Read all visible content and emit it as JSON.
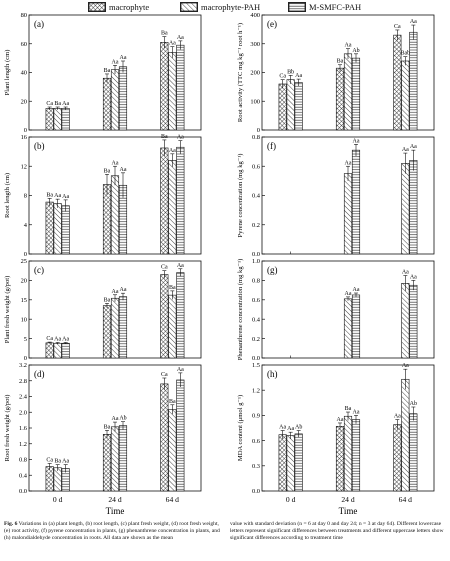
{
  "legend": [
    {
      "label": "macrophyte",
      "pattern": "pat-cross"
    },
    {
      "label": "macrophyte-PAH",
      "pattern": "pat-diag"
    },
    {
      "label": "M-SMFC-PAH",
      "pattern": "pat-hline"
    }
  ],
  "xlabel": "Time",
  "caption": {
    "left_prefix": "Fig. 6",
    "left": " Variations in (a) plant length, (b) root length, (c) plant fresh weight, (d) root fresh weight, (e) root activity, (f) pyrene concentration in plants, (g) phenanthrene concentration in plants, and (h) malondialdehyde concentration in roots. All data are shown as the mean",
    "right": "value with standard deviation (n = 6 at day 0 and day 24; n = 3 at day 64). Different lowercase letters represent significant differences between treatments and different uppercase letters show significant differences according to treatment time"
  },
  "chart_data": [
    {
      "panel": "(a)",
      "type": "bar",
      "ylabel": "Plant length (cm)",
      "ylim": [
        0,
        80
      ],
      "yticks": [
        "0",
        "20",
        "40",
        "60",
        "80"
      ],
      "categories": [
        "0 d",
        "24 d",
        "64 d"
      ],
      "series": [
        {
          "name": "macrophyte",
          "values": [
            15,
            36,
            61
          ],
          "err": [
            1,
            3,
            4
          ]
        },
        {
          "name": "macrophyte-PAH",
          "values": [
            15,
            42,
            54
          ],
          "err": [
            1,
            3,
            4
          ]
        },
        {
          "name": "M-SMFC-PAH",
          "values": [
            15,
            44,
            59
          ],
          "err": [
            1,
            4,
            3
          ]
        }
      ],
      "labels": [
        [
          "Ca",
          "Ba",
          "Aa"
        ],
        [
          "Ba",
          "Aa",
          "Aa"
        ],
        [
          "Ba",
          "Aa",
          "Aa"
        ]
      ]
    },
    {
      "panel": "(b)",
      "type": "bar",
      "ylabel": "Root length (cm)",
      "ylim": [
        0,
        16
      ],
      "yticks": [
        "0",
        "4",
        "8",
        "12",
        "16"
      ],
      "categories": [
        "0 d",
        "24 d",
        "64 d"
      ],
      "series": [
        {
          "name": "macrophyte",
          "values": [
            7.1,
            9.5,
            14.5
          ],
          "err": [
            0.5,
            1.4,
            1.1
          ]
        },
        {
          "name": "macrophyte-PAH",
          "values": [
            6.9,
            10.7,
            12.8
          ],
          "err": [
            0.6,
            1.3,
            0.9
          ]
        },
        {
          "name": "M-SMFC-PAH",
          "values": [
            6.6,
            9.4,
            14.6
          ],
          "err": [
            0.8,
            1.7,
            0.9
          ]
        }
      ],
      "labels": [
        [
          "Ba",
          "Aa",
          "Aa"
        ],
        [
          "Ba",
          "Aa",
          "Aa"
        ],
        [
          "Ba",
          "Aa",
          "Aa"
        ]
      ]
    },
    {
      "panel": "(c)",
      "type": "bar",
      "ylabel": "Plant fresh weight (g/pot)",
      "ylim": [
        0,
        25
      ],
      "yticks": [
        "0",
        "5",
        "10",
        "15",
        "20",
        "25"
      ],
      "categories": [
        "0 d",
        "24 d",
        "64 d"
      ],
      "series": [
        {
          "name": "macrophyte",
          "values": [
            3.9,
            13.5,
            21.5
          ],
          "err": [
            0.2,
            0.6,
            1.0
          ]
        },
        {
          "name": "macrophyte-PAH",
          "values": [
            3.8,
            15.4,
            16.2
          ],
          "err": [
            0.2,
            0.9,
            1.1
          ]
        },
        {
          "name": "M-SMFC-PAH",
          "values": [
            3.8,
            15.8,
            22.0
          ],
          "err": [
            0.2,
            0.9,
            1.0
          ]
        }
      ],
      "labels": [
        [
          "Ca",
          "Aa",
          "Aa"
        ],
        [
          "Ba",
          "Aa",
          "Aa"
        ],
        [
          "Ca",
          "Ba",
          "Aa"
        ]
      ]
    },
    {
      "panel": "(d)",
      "type": "bar",
      "ylabel": "Root fresh weight (g/pot)",
      "ylim": [
        0,
        3.2
      ],
      "yticks": [
        "0.0",
        "0.4",
        "0.8",
        "1.2",
        "1.6",
        "2.0",
        "2.4",
        "2.8",
        "3.2"
      ],
      "categories": [
        "0 d",
        "24 d",
        "64 d"
      ],
      "series": [
        {
          "name": "macrophyte",
          "values": [
            0.62,
            1.44,
            2.72
          ],
          "err": [
            0.08,
            0.1,
            0.15
          ]
        },
        {
          "name": "macrophyte-PAH",
          "values": [
            0.59,
            1.63,
            2.07
          ],
          "err": [
            0.08,
            0.12,
            0.12
          ]
        },
        {
          "name": "M-SMFC-PAH",
          "values": [
            0.57,
            1.66,
            2.82
          ],
          "err": [
            0.1,
            0.1,
            0.18
          ]
        }
      ],
      "labels": [
        [
          "Ca",
          "Ba",
          "Aa"
        ],
        [
          "Ba",
          "Aa",
          "Ab"
        ],
        [
          "Ca",
          "Ba",
          "Aa"
        ]
      ]
    },
    {
      "panel": "(e)",
      "type": "bar",
      "ylabel": "Root activity (TTC mg kg⁻¹ root h⁻¹)",
      "ylim": [
        0,
        400
      ],
      "yticks": [
        "0",
        "100",
        "200",
        "300",
        "400"
      ],
      "categories": [
        "0 d",
        "24 d",
        "64 d"
      ],
      "series": [
        {
          "name": "macrophyte",
          "values": [
            160,
            215,
            330
          ],
          "err": [
            15,
            12,
            18
          ]
        },
        {
          "name": "macrophyte-PAH",
          "values": [
            175,
            265,
            240
          ],
          "err": [
            15,
            18,
            15
          ]
        },
        {
          "name": "M-SMFC-PAH",
          "values": [
            165,
            250,
            340
          ],
          "err": [
            12,
            15,
            25
          ]
        }
      ],
      "labels": [
        [
          "Ca",
          "Bb",
          "Aa"
        ],
        [
          "Ba",
          "Aa",
          "Ab"
        ],
        [
          "Ca",
          "Bab",
          "Aa"
        ]
      ]
    },
    {
      "panel": "(f)",
      "type": "bar",
      "ylabel": "Pyrene concentration (mg kg⁻¹)",
      "ylim": [
        0,
        0.8
      ],
      "yticks": [
        "0.0",
        "0.2",
        "0.4",
        "0.6",
        "0.8"
      ],
      "categories": [
        "0 d",
        "24 d",
        "64 d"
      ],
      "series": [
        {
          "name": "macrophyte",
          "values": [
            null,
            null,
            null
          ],
          "err": [
            0,
            0,
            0
          ]
        },
        {
          "name": "macrophyte-PAH",
          "values": [
            null,
            0.55,
            0.62
          ],
          "err": [
            0,
            0.05,
            0.07
          ]
        },
        {
          "name": "M-SMFC-PAH",
          "values": [
            null,
            0.71,
            0.64
          ],
          "err": [
            0,
            0.04,
            0.07
          ]
        }
      ],
      "labels": [
        [
          "",
          "",
          ""
        ],
        [
          "",
          "Aa",
          "Aa"
        ],
        [
          "",
          "Aa",
          "Aa"
        ]
      ]
    },
    {
      "panel": "(g)",
      "type": "bar",
      "ylabel": "Phenanthrene concentration (mg kg⁻¹)",
      "ylim": [
        0,
        1.0
      ],
      "yticks": [
        "0.0",
        "0.2",
        "0.4",
        "0.6",
        "0.8",
        "1.0"
      ],
      "categories": [
        "0 d",
        "24 d",
        "64 d"
      ],
      "series": [
        {
          "name": "macrophyte",
          "values": [
            null,
            null,
            null
          ],
          "err": [
            0,
            0,
            0
          ]
        },
        {
          "name": "macrophyte-PAH",
          "values": [
            null,
            0.61,
            0.77
          ],
          "err": [
            0,
            0.02,
            0.08
          ]
        },
        {
          "name": "M-SMFC-PAH",
          "values": [
            null,
            0.65,
            0.75
          ],
          "err": [
            0,
            0.02,
            0.05
          ]
        }
      ],
      "labels": [
        [
          "",
          "",
          ""
        ],
        [
          "",
          "Aa",
          "Aa"
        ],
        [
          "",
          "Aa",
          "Aa"
        ]
      ]
    },
    {
      "panel": "(h)",
      "type": "bar",
      "ylabel": "MDA content (μmol g⁻¹)",
      "ylim": [
        0,
        1.5
      ],
      "yticks": [
        "0.0",
        "0.3",
        "0.6",
        "0.9",
        "1.2",
        "1.5"
      ],
      "categories": [
        "0 d",
        "24 d",
        "64 d"
      ],
      "series": [
        {
          "name": "macrophyte",
          "values": [
            0.67,
            0.77,
            0.79
          ],
          "err": [
            0.05,
            0.04,
            0.06
          ]
        },
        {
          "name": "macrophyte-PAH",
          "values": [
            0.66,
            0.89,
            1.33
          ],
          "err": [
            0.04,
            0.05,
            0.12
          ]
        },
        {
          "name": "M-SMFC-PAH",
          "values": [
            0.68,
            0.85,
            0.92
          ],
          "err": [
            0.04,
            0.05,
            0.08
          ]
        }
      ],
      "labels": [
        [
          "Aa",
          "Aa",
          "Ab"
        ],
        [
          "Aa",
          "Ba",
          "Aa"
        ],
        [
          "Aa",
          "Aa",
          "Ab"
        ]
      ]
    }
  ]
}
